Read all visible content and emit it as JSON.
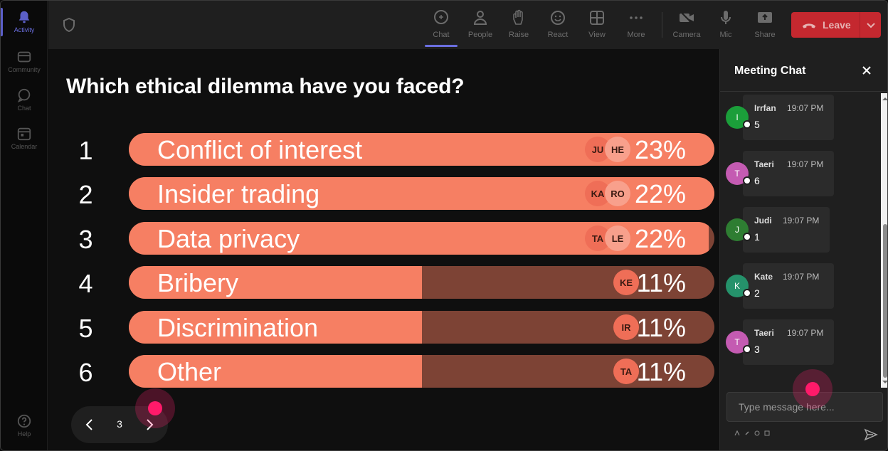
{
  "rail": {
    "items": [
      {
        "label": "Activity",
        "active": true
      },
      {
        "label": "Community"
      },
      {
        "label": "Chat"
      },
      {
        "label": "Calendar"
      }
    ],
    "help_label": "Help"
  },
  "toolbar": {
    "buttons": [
      {
        "label": "Chat",
        "icon": "chat-icon",
        "active": true
      },
      {
        "label": "People",
        "icon": "people-icon"
      },
      {
        "label": "Raise",
        "icon": "raise-hand-icon"
      },
      {
        "label": "React",
        "icon": "react-icon"
      },
      {
        "label": "View",
        "icon": "view-icon"
      },
      {
        "label": "More",
        "icon": "more-icon"
      },
      {
        "label": "Camera",
        "icon": "camera-off-icon"
      },
      {
        "label": "Mic",
        "icon": "mic-icon"
      },
      {
        "label": "Share",
        "icon": "share-icon"
      }
    ],
    "leave_label": "Leave"
  },
  "poll": {
    "question": "Which ethical dilemma have you faced?",
    "options": [
      {
        "rank": "1",
        "label": "Conflict of interest",
        "percent": "23%",
        "share": 1.0,
        "voters": [
          "JU",
          "HE"
        ]
      },
      {
        "rank": "2",
        "label": "Insider trading",
        "percent": "22%",
        "share": 1.0,
        "voters": [
          "KA",
          "RO"
        ]
      },
      {
        "rank": "3",
        "label": "Data privacy",
        "percent": "22%",
        "share": 0.99,
        "voters": [
          "TA",
          "LE"
        ]
      },
      {
        "rank": "4",
        "label": "Bribery",
        "percent": "11%",
        "share": 0.5,
        "voters": [
          "KE"
        ]
      },
      {
        "rank": "5",
        "label": "Discrimination",
        "percent": "11%",
        "share": 0.5,
        "voters": [
          "IR"
        ]
      },
      {
        "rank": "6",
        "label": "Other",
        "percent": "11%",
        "share": 0.5,
        "voters": [
          "TA"
        ]
      }
    ],
    "page": "3"
  },
  "chat": {
    "title": "Meeting Chat",
    "messages": [
      {
        "initial": "I",
        "name": "Irrfan",
        "time": "19:07 PM",
        "text": "5",
        "color": "#1b9e3a"
      },
      {
        "initial": "T",
        "name": "Taeri",
        "time": "19:07 PM",
        "text": "6",
        "color": "#c45bb2"
      },
      {
        "initial": "J",
        "name": "Judi",
        "time": "19:07 PM",
        "text": "1",
        "color": "#2e7d32"
      },
      {
        "initial": "K",
        "name": "Kate",
        "time": "19:07 PM",
        "text": "2",
        "color": "#25926b"
      },
      {
        "initial": "T",
        "name": "Taeri",
        "time": "19:07 PM",
        "text": "3",
        "color": "#c45bb2"
      }
    ],
    "input_placeholder": "Type message here..."
  },
  "colors": {
    "bar_fill": "#f67f63",
    "bar_track": "#7d4335",
    "leave": "#c4282f",
    "accent": "#5b5fc7",
    "cursor": "#ff1a6a"
  }
}
